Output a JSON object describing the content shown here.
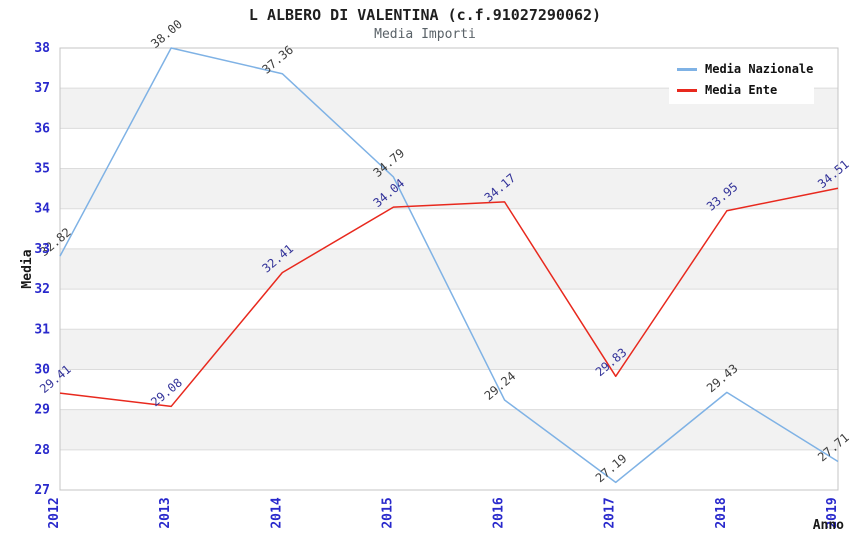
{
  "title": "L ALBERO DI VALENTINA (c.f.91027290062)",
  "subtitle": "Media Importi",
  "legend": {
    "items": [
      {
        "label": "Media Nazionale",
        "color": "#7fb2e5"
      },
      {
        "label": "Media Ente",
        "color": "#e8291e"
      }
    ]
  },
  "chart_data": {
    "type": "line",
    "title": "L ALBERO DI VALENTINA (c.f.91027290062)",
    "subtitle": "Media Importi",
    "xlabel": "Anno",
    "ylabel": "Media",
    "x": [
      "2012",
      "2013",
      "2014",
      "2015",
      "2016",
      "2017",
      "2018",
      "2019"
    ],
    "series": [
      {
        "name": "Media Nazionale",
        "color": "#7fb2e5",
        "label_color": "#3d3d3d",
        "values": [
          32.82,
          38.0,
          37.36,
          34.79,
          29.24,
          27.19,
          29.43,
          27.71
        ]
      },
      {
        "name": "Media Ente",
        "color": "#e8291e",
        "label_color": "#333399",
        "values": [
          29.41,
          29.08,
          32.41,
          34.04,
          34.17,
          29.83,
          33.95,
          34.51
        ]
      }
    ],
    "ylim": [
      27,
      38
    ],
    "y_ticks": [
      38,
      37,
      36,
      35,
      34,
      33,
      32,
      31,
      30,
      29,
      28,
      27
    ],
    "grid": "horizontal-bands",
    "legend_position": "top-right",
    "band_colors": [
      "#ffffff",
      "#f2f2f2"
    ],
    "band_line_color": "#dcdcdc",
    "border_color": "#c4c4c4",
    "tick_color": "#2929cc"
  }
}
